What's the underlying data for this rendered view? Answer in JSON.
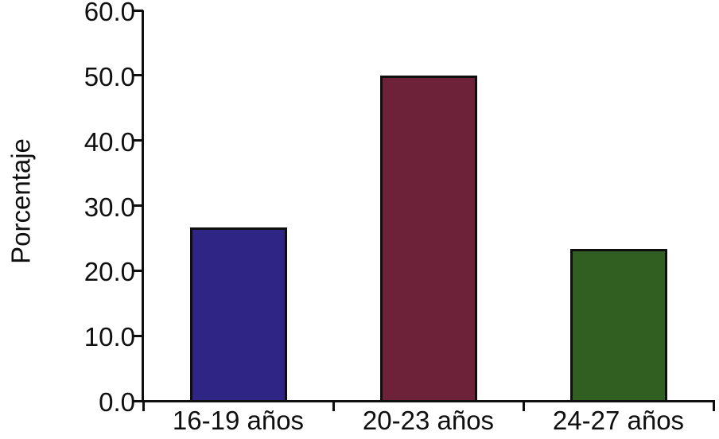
{
  "figure": {
    "background": "#ffffff",
    "text_color": "#0f0f0f",
    "axis_color": "#0f0f0f"
  },
  "chart_data": {
    "type": "bar",
    "title": "",
    "xlabel": "",
    "ylabel": "Porcentaje",
    "categories": [
      "16-19 años",
      "20-23 años",
      "24-27 años"
    ],
    "values": [
      26.7,
      50.0,
      23.3
    ],
    "bar_colors": [
      "#2e2584",
      "#6e2239",
      "#315f22"
    ],
    "bar_border_color": "#0f0f0f",
    "ylim": [
      0,
      60
    ],
    "y_ticks": [
      0,
      10,
      20,
      30,
      40,
      50,
      60
    ],
    "y_tick_labels": [
      "0.0",
      "10.0",
      "20.0",
      "30.0",
      "40.0",
      "50.0",
      "60.0"
    ],
    "grid": false,
    "legend": false,
    "spines": [
      "left",
      "bottom"
    ]
  }
}
